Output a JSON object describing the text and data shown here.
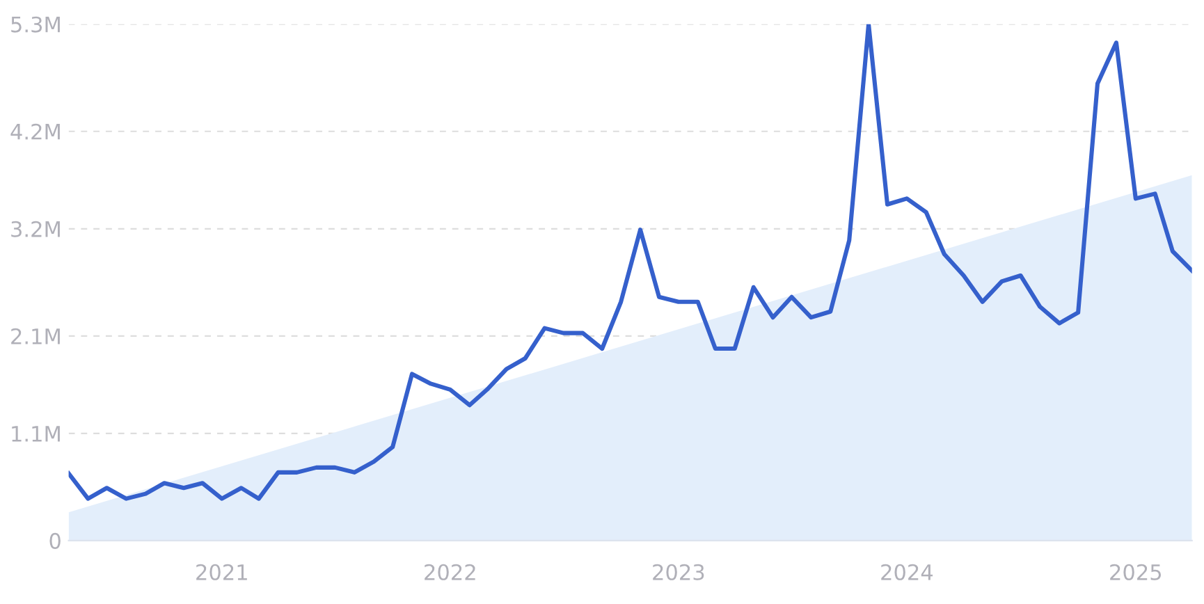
{
  "chart_data": {
    "type": "line",
    "x": [
      "2020-05",
      "2020-06",
      "2020-07",
      "2020-08",
      "2020-09",
      "2020-10",
      "2020-11",
      "2020-12",
      "2021-01",
      "2021-02",
      "2021-03",
      "2021-04",
      "2021-05",
      "2021-06",
      "2021-07",
      "2021-08",
      "2021-09",
      "2021-10",
      "2021-11",
      "2021-12",
      "2022-01",
      "2022-02",
      "2022-03",
      "2022-04",
      "2022-05",
      "2022-06",
      "2022-07",
      "2022-08",
      "2022-09",
      "2022-10",
      "2022-11",
      "2022-12",
      "2023-01",
      "2023-02",
      "2023-03",
      "2023-04",
      "2023-05",
      "2023-06",
      "2023-07",
      "2023-08",
      "2023-09",
      "2023-10",
      "2023-11",
      "2023-12",
      "2024-01",
      "2024-02",
      "2024-03",
      "2024-04",
      "2024-05",
      "2024-06",
      "2024-07",
      "2024-08",
      "2024-09",
      "2024-10",
      "2024-11",
      "2024-12",
      "2025-01",
      "2025-02",
      "2025-03",
      "2025-04"
    ],
    "series": [
      {
        "type": "area",
        "color": "#e3eefb",
        "x": [
          "2020-05",
          "2025-04"
        ],
        "values": [
          0.29,
          3.75
        ]
      },
      {
        "color": "#3560cc",
        "values": [
          0.69,
          0.43,
          0.54,
          0.43,
          0.48,
          0.59,
          0.54,
          0.59,
          0.43,
          0.54,
          0.43,
          0.7,
          0.7,
          0.75,
          0.75,
          0.7,
          0.81,
          0.96,
          1.71,
          1.61,
          1.55,
          1.39,
          1.55,
          1.76,
          1.87,
          2.18,
          2.13,
          2.13,
          1.97,
          2.45,
          3.19,
          2.5,
          2.45,
          2.45,
          1.97,
          1.97,
          2.6,
          2.29,
          2.5,
          2.29,
          2.35,
          3.08,
          5.3,
          3.45,
          3.51,
          3.37,
          2.94,
          2.72,
          2.45,
          2.66,
          2.72,
          2.4,
          2.23,
          2.34,
          4.69,
          5.11,
          3.51,
          3.56,
          2.97,
          2.77
        ]
      }
    ],
    "xlim": [
      "2020-05",
      "2025-04"
    ],
    "xticks": [
      {
        "value": "2021-01",
        "label": "2021"
      },
      {
        "value": "2022-01",
        "label": "2022"
      },
      {
        "value": "2023-01",
        "label": "2023"
      },
      {
        "value": "2024-01",
        "label": "2024"
      },
      {
        "value": "2025-01",
        "label": "2025"
      }
    ],
    "ylim": [
      0,
      5.3
    ],
    "yticks": [
      0,
      {
        "value": 1.1,
        "label": "1.1M"
      },
      {
        "value": 2.1,
        "label": "2.1M"
      },
      {
        "value": 3.2,
        "label": "3.2M"
      },
      {
        "value": 4.2,
        "label": "4.2M"
      },
      {
        "value": 5.3,
        "label": "5.3M"
      }
    ],
    "grid": "y",
    "line_style": "solid"
  }
}
